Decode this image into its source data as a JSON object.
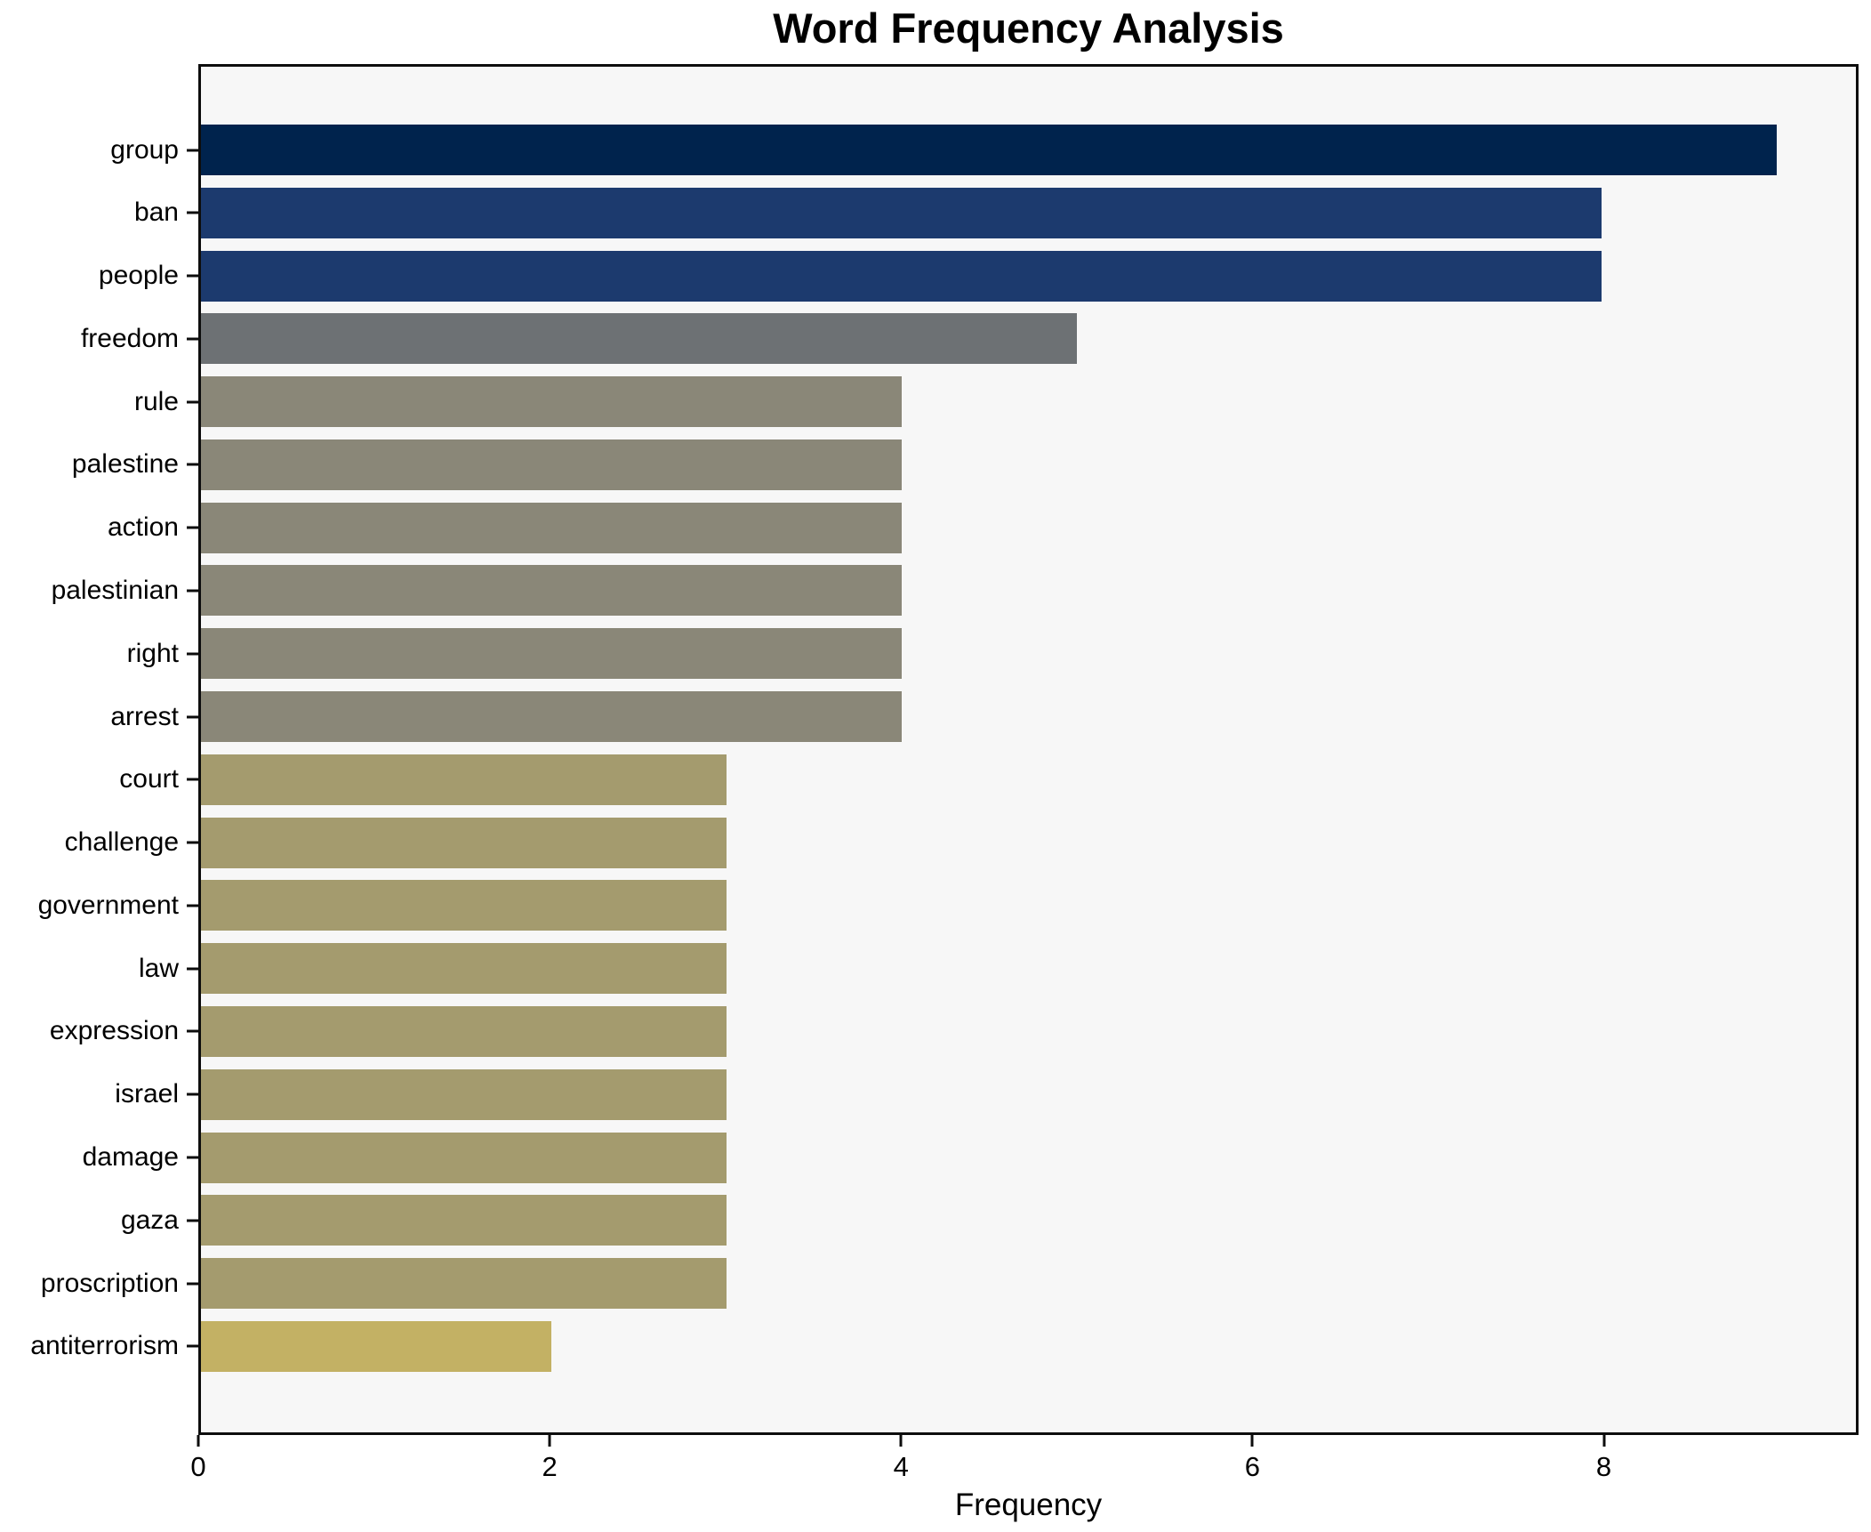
{
  "figure": {
    "title": "Word Frequency Analysis",
    "xlabel": "Frequency"
  },
  "chart_data": {
    "type": "bar",
    "orientation": "horizontal",
    "title": "Word Frequency Analysis",
    "xlabel": "Frequency",
    "ylabel": "",
    "categories": [
      "group",
      "ban",
      "people",
      "freedom",
      "rule",
      "palestine",
      "action",
      "palestinian",
      "right",
      "arrest",
      "court",
      "challenge",
      "government",
      "law",
      "expression",
      "israel",
      "damage",
      "gaza",
      "proscription",
      "antiterrorism"
    ],
    "values": [
      9,
      8,
      8,
      5,
      4,
      4,
      4,
      4,
      4,
      4,
      3,
      3,
      3,
      3,
      3,
      3,
      3,
      3,
      3,
      2
    ],
    "bar_colors": [
      "#00234d",
      "#1c3a6e",
      "#1c3a6e",
      "#6d7174",
      "#8a8778",
      "#8a8778",
      "#8a8778",
      "#8a8778",
      "#8a8778",
      "#8a8778",
      "#a49b6e",
      "#a49b6e",
      "#a49b6e",
      "#a49b6e",
      "#a49b6e",
      "#a49b6e",
      "#a49b6e",
      "#a49b6e",
      "#a49b6e",
      "#c3b164"
    ],
    "xlim": [
      0,
      9.45
    ],
    "xticks": [
      0,
      2,
      4,
      6,
      8
    ],
    "grid": false,
    "legend": false,
    "plot_background": "#f7f7f7",
    "figure_background": "#ffffff",
    "spine_color": "#0d0d0d",
    "colormap": "cividis-like (navy to gold by descending frequency)"
  }
}
